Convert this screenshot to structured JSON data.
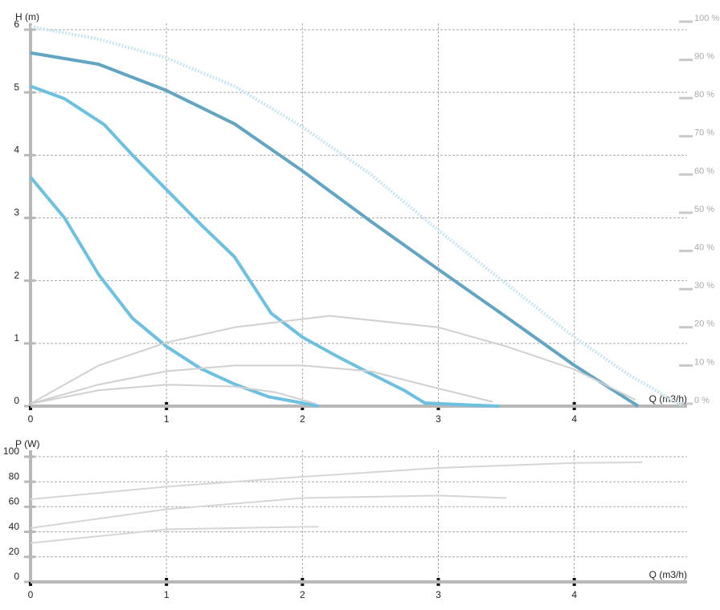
{
  "chart_data": [
    {
      "type": "line",
      "ylabel": "H (m)",
      "xlabel": "Q (m3/h)",
      "xlim": [
        0,
        4.8
      ],
      "xticks": [
        0,
        1,
        2,
        3,
        4
      ],
      "ylim": [
        0,
        6
      ],
      "yticks": [
        0,
        1,
        2,
        3,
        4,
        5,
        6
      ],
      "y2lim": [
        0,
        100
      ],
      "y2ticks": [
        {
          "value": 0,
          "label": "0 %"
        },
        {
          "value": 10,
          "label": "10 %"
        },
        {
          "value": 20,
          "label": "20 %"
        },
        {
          "value": 30,
          "label": "30 %"
        },
        {
          "value": 40,
          "label": "40 %"
        },
        {
          "value": 50,
          "label": "50 %"
        },
        {
          "value": 60,
          "label": "60 %"
        },
        {
          "value": 70,
          "label": "70 %"
        },
        {
          "value": 80,
          "label": "80 %"
        },
        {
          "value": 90,
          "label": "90 %"
        },
        {
          "value": 100,
          "label": "100 %"
        }
      ],
      "grid": true,
      "series": [
        {
          "color": "#c6e4f1",
          "style": "dotted",
          "x": [
            0,
            0.5,
            1,
            1.5,
            2,
            2.5,
            3,
            3.5,
            4,
            4.4,
            4.8
          ],
          "values": [
            6.05,
            5.85,
            5.55,
            5.1,
            4.45,
            3.7,
            2.8,
            1.95,
            1.1,
            0.5,
            0
          ]
        },
        {
          "color": "#62a5c2",
          "style": "solid",
          "x": [
            0,
            0.5,
            1,
            1.5,
            2,
            2.5,
            3,
            3.5,
            4,
            4.47
          ],
          "values": [
            5.63,
            5.45,
            5.03,
            4.5,
            3.75,
            2.95,
            2.18,
            1.42,
            0.65,
            0
          ]
        },
        {
          "color": "#6cc0e0",
          "style": "solid",
          "x": [
            0,
            0.25,
            0.54,
            0.75,
            1,
            1.25,
            1.5,
            1.77,
            2,
            2.25,
            2.5,
            2.75,
            2.9,
            3.2,
            3.45
          ],
          "values": [
            5.1,
            4.9,
            4.49,
            4.0,
            3.45,
            2.9,
            2.38,
            1.48,
            1.1,
            0.8,
            0.52,
            0.25,
            0.05,
            0.02,
            0
          ]
        },
        {
          "color": "#6cc0e0",
          "style": "solid",
          "x": [
            0,
            0.25,
            0.5,
            0.75,
            1,
            1.25,
            1.5,
            1.75,
            2,
            2.12
          ],
          "values": [
            3.65,
            3.0,
            2.1,
            1.4,
            0.95,
            0.6,
            0.35,
            0.15,
            0.05,
            0
          ]
        },
        {
          "color": "#d0d0d0",
          "style": "solid",
          "axis": "y2",
          "x": [
            0,
            0.5,
            1,
            1.5,
            2.2,
            3,
            3.5,
            4,
            4.45
          ],
          "values": [
            0,
            10,
            16,
            20,
            23,
            20,
            15,
            9,
            1
          ]
        },
        {
          "color": "#d0d0d0",
          "style": "solid",
          "axis": "y2",
          "x": [
            0,
            0.5,
            1,
            1.5,
            2,
            2.5,
            3,
            3.4
          ],
          "values": [
            0,
            5,
            8.5,
            10,
            10,
            8.5,
            4,
            0.5
          ]
        },
        {
          "color": "#d0d0d0",
          "style": "solid",
          "axis": "y2",
          "x": [
            0,
            0.5,
            1,
            1.5,
            1.8,
            2.1
          ],
          "values": [
            0,
            3.5,
            5,
            4.5,
            3,
            0
          ]
        }
      ]
    },
    {
      "type": "line",
      "ylabel": "P (W)",
      "xlabel": "Q (m3/h)",
      "xlim": [
        0,
        4.8
      ],
      "xticks": [
        0,
        1,
        2,
        3,
        4
      ],
      "ylim": [
        0,
        100
      ],
      "yticks": [
        0,
        20,
        40,
        60,
        80,
        100
      ],
      "grid": true,
      "series": [
        {
          "color": "#d6d6d6",
          "style": "solid",
          "x": [
            0,
            1,
            2,
            3,
            4,
            4.5
          ],
          "values": [
            66,
            76,
            84,
            91,
            95,
            95.5
          ]
        },
        {
          "color": "#d6d6d6",
          "style": "solid",
          "x": [
            0,
            1,
            2,
            3,
            3.5
          ],
          "values": [
            43,
            58,
            67,
            69,
            67
          ]
        },
        {
          "color": "#d6d6d6",
          "style": "solid",
          "x": [
            0,
            1,
            2,
            2.12
          ],
          "values": [
            31,
            42,
            44,
            44
          ]
        }
      ]
    }
  ]
}
